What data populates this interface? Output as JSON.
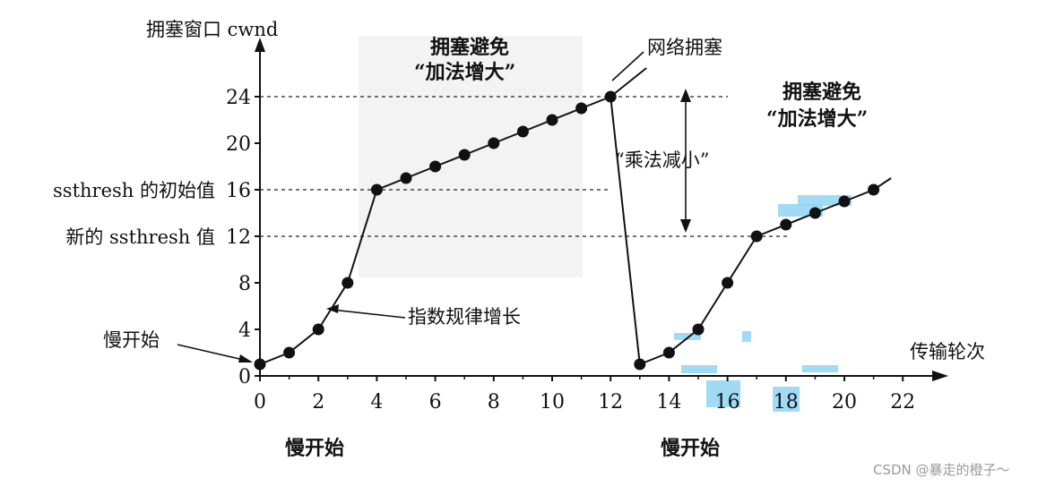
{
  "chart_data": {
    "type": "line",
    "xlabel": "传输轮次",
    "ylabel": "拥塞窗口 cwnd",
    "x_ticks": [
      0,
      2,
      4,
      6,
      8,
      10,
      12,
      14,
      16,
      18,
      20,
      22
    ],
    "y_ticks": [
      0,
      4,
      8,
      12,
      16,
      20,
      24
    ],
    "xlim": [
      0,
      23
    ],
    "ylim": [
      0,
      27
    ],
    "series": [
      {
        "points": [
          [
            0,
            1
          ],
          [
            1,
            2
          ],
          [
            2,
            4
          ],
          [
            3,
            8
          ],
          [
            4,
            16
          ],
          [
            5,
            17
          ],
          [
            6,
            18
          ],
          [
            7,
            19
          ],
          [
            8,
            20
          ],
          [
            9,
            21
          ],
          [
            10,
            22
          ],
          [
            11,
            23
          ],
          [
            12,
            24
          ],
          [
            13,
            1
          ],
          [
            14,
            2
          ],
          [
            15,
            4
          ],
          [
            16,
            8
          ],
          [
            17,
            12
          ],
          [
            18,
            13
          ],
          [
            19,
            14
          ],
          [
            20,
            15
          ],
          [
            21,
            16
          ]
        ]
      }
    ],
    "line_end": [
      21.6,
      17
    ],
    "reference_lines": [
      {
        "y": 24
      },
      {
        "y": 16,
        "label": "ssthresh 的初始值"
      },
      {
        "y": 12,
        "label": "新的 ssthresh 值"
      }
    ],
    "annotations": {
      "slow_start_left": "慢开始",
      "exponential_growth": "指数规律增长",
      "congestion": "网络拥塞",
      "avoidance_1": [
        "拥塞避免",
        "“加法增大”"
      ],
      "avoidance_2": [
        "拥塞避免",
        "“加法增大”"
      ],
      "multiplicative_decrease": "“乘法减小”",
      "phase_1": "慢开始",
      "phase_2": "慢开始"
    }
  },
  "watermark": "CSDN @暴走的橙子～",
  "colors": {
    "highlight": "#8fd3f2",
    "ink": "#111111"
  }
}
